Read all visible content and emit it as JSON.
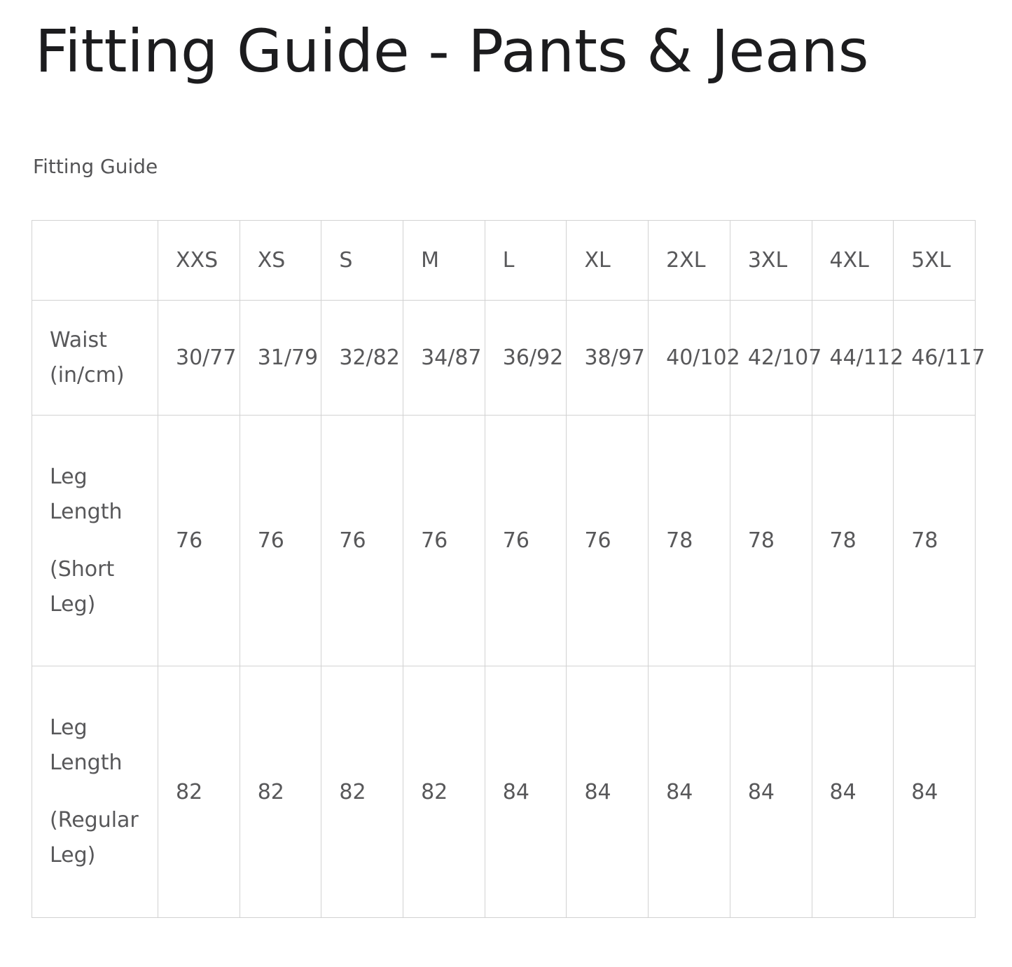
{
  "page": {
    "heading": "Fitting Guide - Pants & Jeans",
    "section_heading": "Fitting Guide"
  },
  "size_table": {
    "columns": [
      "",
      "XXS",
      "XS",
      "S",
      "M",
      "L",
      "XL",
      "2XL",
      "3XL",
      "4XL",
      "5XL"
    ],
    "rows": [
      {
        "label": "Waist (in/cm)",
        "values": [
          "30/77",
          "31/79",
          "32/82",
          "34/87",
          "36/92",
          "38/97",
          "40/102",
          "42/107",
          "44/112",
          "46/117"
        ]
      },
      {
        "label": "Leg Length",
        "label_note": "(Short Leg)",
        "values": [
          "76",
          "76",
          "76",
          "76",
          "76",
          "76",
          "78",
          "78",
          "78",
          "78"
        ]
      },
      {
        "label": "Leg Length",
        "label_note": "(Regular Leg)",
        "values": [
          "82",
          "82",
          "82",
          "82",
          "84",
          "84",
          "84",
          "84",
          "84",
          "84"
        ]
      }
    ]
  },
  "colors": {
    "heading_text": "#1c1c1e",
    "table_text": "#58585a",
    "table_border": "#d2d2d2",
    "background": "#ffffff"
  }
}
